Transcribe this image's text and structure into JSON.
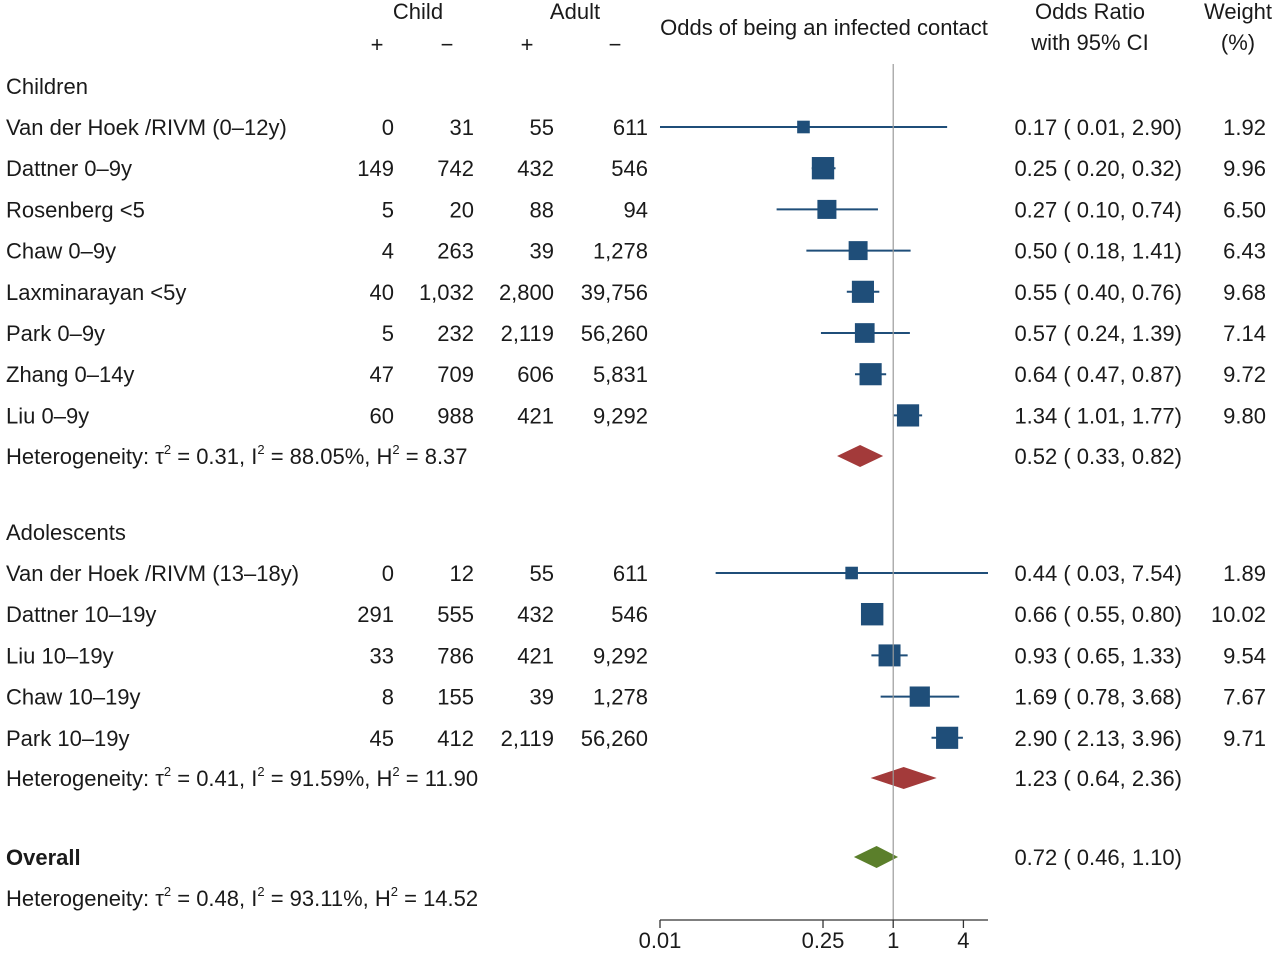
{
  "chart_data": {
    "type": "forest",
    "header": {
      "child_label": "Child",
      "adult_label": "Adult",
      "plus": "+",
      "minus": "−",
      "plot_title": "Odds of being an infected contact",
      "or_label_line1": "Odds Ratio",
      "or_label_line2": "with 95% CI",
      "weight_label_line1": "Weight",
      "weight_label_line2": "(%)"
    },
    "x_scale": "log",
    "xlim": [
      0.01,
      6.5
    ],
    "xticks": [
      {
        "value": 0.01,
        "label": "0.01"
      },
      {
        "value": 0.25,
        "label": "0.25"
      },
      {
        "value": 1,
        "label": "1"
      },
      {
        "value": 4,
        "label": "4"
      }
    ],
    "reference_line": 1,
    "groups": [
      {
        "name": "Children",
        "studies": [
          {
            "label": "Van der Hoek /RIVM (0–12y)",
            "child_pos": "0",
            "child_neg": "31",
            "adult_pos": "55",
            "adult_neg": "611",
            "or": 0.17,
            "lo": 0.01,
            "hi": 2.9,
            "or_text": "0.17 ( 0.01,  2.90)",
            "weight": 1.92,
            "weight_text": "1.92"
          },
          {
            "label": "Dattner 0–9y",
            "child_pos": "149",
            "child_neg": "742",
            "adult_pos": "432",
            "adult_neg": "546",
            "or": 0.25,
            "lo": 0.2,
            "hi": 0.32,
            "or_text": "0.25 ( 0.20,  0.32)",
            "weight": 9.96,
            "weight_text": "9.96"
          },
          {
            "label": "Rosenberg <5",
            "child_pos": "5",
            "child_neg": "20",
            "adult_pos": "88",
            "adult_neg": "94",
            "or": 0.27,
            "lo": 0.1,
            "hi": 0.74,
            "or_text": "0.27 ( 0.10,  0.74)",
            "weight": 6.5,
            "weight_text": "6.50"
          },
          {
            "label": "Chaw 0–9y",
            "child_pos": "4",
            "child_neg": "263",
            "adult_pos": "39",
            "adult_neg": "1,278",
            "or": 0.5,
            "lo": 0.18,
            "hi": 1.41,
            "or_text": "0.50 ( 0.18,  1.41)",
            "weight": 6.43,
            "weight_text": "6.43"
          },
          {
            "label": "Laxminarayan <5y",
            "child_pos": "40",
            "child_neg": "1,032",
            "adult_pos": "2,800",
            "adult_neg": "39,756",
            "or": 0.55,
            "lo": 0.4,
            "hi": 0.76,
            "or_text": "0.55 ( 0.40,  0.76)",
            "weight": 9.68,
            "weight_text": "9.68"
          },
          {
            "label": "Park 0–9y",
            "child_pos": "5",
            "child_neg": "232",
            "adult_pos": "2,119",
            "adult_neg": "56,260",
            "or": 0.57,
            "lo": 0.24,
            "hi": 1.39,
            "or_text": "0.57 ( 0.24,  1.39)",
            "weight": 7.14,
            "weight_text": "7.14"
          },
          {
            "label": "Zhang 0–14y",
            "child_pos": "47",
            "child_neg": "709",
            "adult_pos": "606",
            "adult_neg": "5,831",
            "or": 0.64,
            "lo": 0.47,
            "hi": 0.87,
            "or_text": "0.64 ( 0.47,  0.87)",
            "weight": 9.72,
            "weight_text": "9.72"
          },
          {
            "label": "Liu 0–9y",
            "child_pos": "60",
            "child_neg": "988",
            "adult_pos": "421",
            "adult_neg": "9,292",
            "or": 1.34,
            "lo": 1.01,
            "hi": 1.77,
            "or_text": "1.34 ( 1.01,  1.77)",
            "weight": 9.8,
            "weight_text": "9.80"
          }
        ],
        "summary": {
          "label_prefix": "Heterogeneity: τ",
          "sup1": "2",
          "mid1": " = 0.31, I",
          "sup2": "2",
          "mid2": " = 88.05%, H",
          "sup3": "2",
          "tail": " = 8.37",
          "or": 0.52,
          "lo": 0.33,
          "hi": 0.82,
          "or_text": "0.52 ( 0.33,  0.82)"
        }
      },
      {
        "name": "Adolescents",
        "studies": [
          {
            "label": "Van der Hoek /RIVM (13–18y)",
            "child_pos": "0",
            "child_neg": "12",
            "adult_pos": "55",
            "adult_neg": "611",
            "or": 0.44,
            "lo": 0.03,
            "hi": 7.54,
            "or_text": "0.44 ( 0.03,  7.54)",
            "weight": 1.89,
            "weight_text": "1.89"
          },
          {
            "label": "Dattner 10–19y",
            "child_pos": "291",
            "child_neg": "555",
            "adult_pos": "432",
            "adult_neg": "546",
            "or": 0.66,
            "lo": 0.55,
            "hi": 0.8,
            "or_text": "0.66 ( 0.55,  0.80)",
            "weight": 10.02,
            "weight_text": "10.02"
          },
          {
            "label": "Liu 10–19y",
            "child_pos": "33",
            "child_neg": "786",
            "adult_pos": "421",
            "adult_neg": "9,292",
            "or": 0.93,
            "lo": 0.65,
            "hi": 1.33,
            "or_text": "0.93 ( 0.65,  1.33)",
            "weight": 9.54,
            "weight_text": "9.54"
          },
          {
            "label": "Chaw 10–19y",
            "child_pos": "8",
            "child_neg": "155",
            "adult_pos": "39",
            "adult_neg": "1,278",
            "or": 1.69,
            "lo": 0.78,
            "hi": 3.68,
            "or_text": "1.69 ( 0.78,  3.68)",
            "weight": 7.67,
            "weight_text": "7.67"
          },
          {
            "label": "Park 10–19y",
            "child_pos": "45",
            "child_neg": "412",
            "adult_pos": "2,119",
            "adult_neg": "56,260",
            "or": 2.9,
            "lo": 2.13,
            "hi": 3.96,
            "or_text": "2.90 ( 2.13,  3.96)",
            "weight": 9.71,
            "weight_text": "9.71"
          }
        ],
        "summary": {
          "label_prefix": "Heterogeneity: τ",
          "sup1": "2",
          "mid1": " = 0.41, I",
          "sup2": "2",
          "mid2": " = 91.59%, H",
          "sup3": "2",
          "tail": " = 11.90",
          "or": 1.23,
          "lo": 0.64,
          "hi": 2.36,
          "or_text": "1.23 ( 0.64,  2.36)"
        }
      }
    ],
    "overall": {
      "label": "Overall",
      "or": 0.72,
      "lo": 0.46,
      "hi": 1.1,
      "or_text": "0.72 ( 0.46,  1.10)",
      "heterogeneity": {
        "label_prefix": "Heterogeneity: τ",
        "sup1": "2",
        "mid1": " = 0.48, I",
        "sup2": "2",
        "mid2": " = 93.11%, H",
        "sup3": "2",
        "tail": " = 14.52"
      }
    },
    "colors": {
      "study_marker": "#1f4e79",
      "ci_line": "#1f4e79",
      "subgroup_diamond": "#a33a3a",
      "overall_diamond": "#5b7f2b",
      "reference_line": "#9a9a9a",
      "text": "#1a1a1a"
    }
  }
}
